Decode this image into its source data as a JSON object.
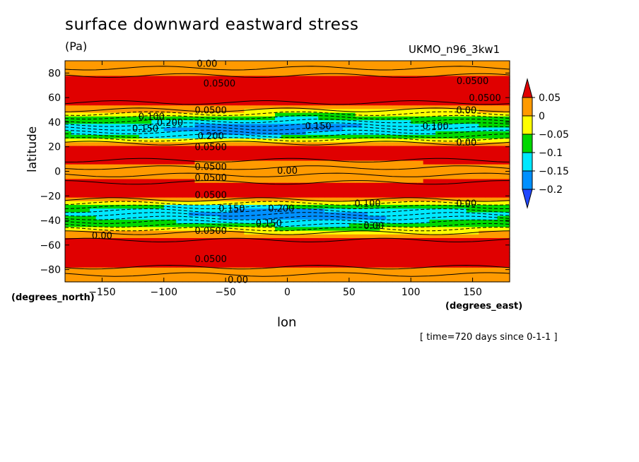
{
  "chart_data": {
    "type": "heatmap",
    "title": "surface downward eastward stress",
    "units": "(Pa)",
    "source_label": "UKMO_n96_3kw1",
    "xlabel": "lon",
    "ylabel": "latitude",
    "x_units": "(degrees_east)",
    "y_units": "(degrees_north)",
    "time_label": "[ time=720 days since 0-1-1 ]",
    "xlim": [
      -180,
      180
    ],
    "ylim": [
      -90,
      90
    ],
    "x_ticks": [
      -150,
      -100,
      -50,
      0,
      50,
      100,
      150
    ],
    "y_ticks": [
      -80,
      -60,
      -40,
      -20,
      0,
      20,
      40,
      60,
      80
    ],
    "colorbar": {
      "levels": [
        0.05,
        0,
        -0.05,
        -0.1,
        -0.15,
        -0.2
      ],
      "tick_labels": [
        "0.05",
        "0",
        "−0.05",
        "−0.1",
        "−0.15",
        "−0.2"
      ],
      "colors": [
        "#e00000",
        "#ff9a00",
        "#ffff00",
        "#00d800",
        "#00e8ff",
        "#0090ff",
        "#2048ff"
      ]
    },
    "field_description": "zonally banded wind stress; negative minima near 35N and 35S (~ -0.2 Pa), positive maxima near 60N, 60S and 15N/15S",
    "latitude_profile": [
      [
        -90,
        0.0
      ],
      [
        -85,
        0.02
      ],
      [
        -78,
        0.05
      ],
      [
        -70,
        0.09
      ],
      [
        -62,
        0.1
      ],
      [
        -55,
        0.07
      ],
      [
        -48,
        -0.02
      ],
      [
        -42,
        -0.12
      ],
      [
        -36,
        -0.19
      ],
      [
        -30,
        -0.15
      ],
      [
        -25,
        -0.02
      ],
      [
        -20,
        0.06
      ],
      [
        -12,
        0.09
      ],
      [
        -6,
        0.05
      ],
      [
        0,
        0.03
      ],
      [
        6,
        0.05
      ],
      [
        12,
        0.09
      ],
      [
        20,
        0.06
      ],
      [
        25,
        -0.02
      ],
      [
        30,
        -0.15
      ],
      [
        36,
        -0.19
      ],
      [
        42,
        -0.12
      ],
      [
        48,
        -0.02
      ],
      [
        55,
        0.07
      ],
      [
        62,
        0.1
      ],
      [
        70,
        0.09
      ],
      [
        78,
        0.05
      ],
      [
        85,
        0.02
      ],
      [
        90,
        0.0
      ]
    ],
    "contour_labels": [
      {
        "text": "0.00",
        "lon": -65,
        "lat": 88
      },
      {
        "text": "0.0500",
        "lon": -55,
        "lat": 72
      },
      {
        "text": "0.0500",
        "lon": 150,
        "lat": 74
      },
      {
        "text": "0.0500",
        "lon": 160,
        "lat": 60
      },
      {
        "text": "0.00",
        "lon": 145,
        "lat": 50
      },
      {
        "text": "0.0500",
        "lon": -62,
        "lat": 50
      },
      {
        "text": "0.100",
        "lon": -110,
        "lat": 45
      },
      {
        "text": "0.200",
        "lon": -95,
        "lat": 40
      },
      {
        "text": "0.150",
        "lon": -115,
        "lat": 35
      },
      {
        "text": "0.150",
        "lon": 25,
        "lat": 37
      },
      {
        "text": "0.100",
        "lon": 120,
        "lat": 37
      },
      {
        "text": "0.200",
        "lon": -62,
        "lat": 29
      },
      {
        "text": "0.0500",
        "lon": -62,
        "lat": 20
      },
      {
        "text": "0.00",
        "lon": 145,
        "lat": 24
      },
      {
        "text": "0.0500",
        "lon": -62,
        "lat": 4
      },
      {
        "text": "0.00",
        "lon": 0,
        "lat": 1
      },
      {
        "text": "0.0500",
        "lon": -62,
        "lat": -5
      },
      {
        "text": "0.0500",
        "lon": -62,
        "lat": -19
      },
      {
        "text": "0.100",
        "lon": 65,
        "lat": -26
      },
      {
        "text": "0.00",
        "lon": 145,
        "lat": -26
      },
      {
        "text": "0.150",
        "lon": -45,
        "lat": -30
      },
      {
        "text": "0.200",
        "lon": -5,
        "lat": -30
      },
      {
        "text": "0.150",
        "lon": -15,
        "lat": -42
      },
      {
        "text": "0.00",
        "lon": 70,
        "lat": -44
      },
      {
        "text": "0.0500",
        "lon": -62,
        "lat": -48
      },
      {
        "text": "0.00",
        "lon": -150,
        "lat": -52
      },
      {
        "text": "0.0500",
        "lon": -62,
        "lat": -71
      },
      {
        "text": "0.00",
        "lon": -40,
        "lat": -88
      }
    ]
  }
}
